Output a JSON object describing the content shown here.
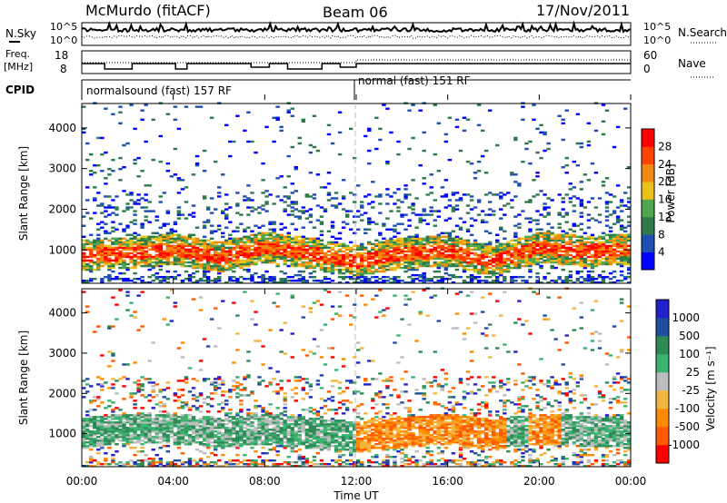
{
  "header": {
    "station": "McMurdo (fitACF)",
    "beam": "Beam 06",
    "date": "17/Nov/2011"
  },
  "top_panels": {
    "nsky_label": "N.Sky",
    "nsearch_label": "N.Search",
    "nsky_ticks": [
      "10^5",
      "10^0"
    ],
    "nsearch_ticks": [
      "10^5",
      "10^0"
    ],
    "freq_label_1": "Freq.",
    "freq_label_2": "[MHz]",
    "freq_ticks": [
      "18",
      "8"
    ],
    "nave_label": "Nave",
    "nave_ticks": [
      "60",
      "0"
    ],
    "cpid_label": "CPID",
    "cpid_segments": [
      "normalsound (fast) 157 RF",
      "normal (fast) 151 RF"
    ]
  },
  "x_axis": {
    "label": "Time UT",
    "ticks": [
      "00:00",
      "04:00",
      "08:00",
      "12:00",
      "16:00",
      "20:00",
      "00:00"
    ]
  },
  "colors": {
    "power": [
      "#0000ff",
      "#1f4fb0",
      "#2f7a4a",
      "#4fa64f",
      "#e8c21a",
      "#f08a10",
      "#ff4500",
      "#ff0000"
    ],
    "velocity": [
      "#ff0000",
      "#ff5a00",
      "#ff8c00",
      "#f2b640",
      "#bdbdbd",
      "#3cb371",
      "#2e8b57",
      "#1e4fa0",
      "#2222cc"
    ]
  },
  "chart_data": [
    {
      "type": "heatmap",
      "title": "",
      "xlabel": "Time UT",
      "ylabel": "Slant Range [km]",
      "xlim": [
        "00:00",
        "24:00"
      ],
      "ylim": [
        180,
        4600
      ],
      "yticks": [
        1000,
        2000,
        3000,
        4000
      ],
      "colorbar": {
        "label": "Power [dB]",
        "ticks": [
          4,
          8,
          12,
          16,
          20,
          24,
          28
        ],
        "range": [
          0,
          30
        ]
      },
      "band_profile": [
        {
          "x": "00:00",
          "y": 850
        },
        {
          "x": "02:00",
          "y": 900
        },
        {
          "x": "04:00",
          "y": 1000
        },
        {
          "x": "06:00",
          "y": 800
        },
        {
          "x": "08:00",
          "y": 1050
        },
        {
          "x": "10:00",
          "y": 900
        },
        {
          "x": "12:00",
          "y": 700
        },
        {
          "x": "14:00",
          "y": 900
        },
        {
          "x": "16:00",
          "y": 950
        },
        {
          "x": "18:00",
          "y": 700
        },
        {
          "x": "20:00",
          "y": 1050
        },
        {
          "x": "22:00",
          "y": 950
        },
        {
          "x": "24:00",
          "y": 1000
        }
      ]
    },
    {
      "type": "heatmap",
      "title": "",
      "xlabel": "Time UT",
      "ylabel": "Slant Range [km]",
      "xlim": [
        "00:00",
        "24:00"
      ],
      "ylim": [
        180,
        4600
      ],
      "yticks": [
        1000,
        2000,
        3000,
        4000
      ],
      "colorbar": {
        "label": "Velocity [m s⁻¹]",
        "ticks": [
          1000,
          500,
          100,
          25,
          -25,
          -100,
          -500,
          -1000
        ]
      },
      "band_profile": [
        {
          "x": "00:00",
          "y": 1000
        },
        {
          "x": "02:00",
          "y": 1100
        },
        {
          "x": "04:00",
          "y": 1100
        },
        {
          "x": "06:00",
          "y": 1000
        },
        {
          "x": "08:00",
          "y": 1100
        },
        {
          "x": "10:00",
          "y": 1000
        },
        {
          "x": "12:00",
          "y": 900
        },
        {
          "x": "14:00",
          "y": 1000
        },
        {
          "x": "16:00",
          "y": 1100
        },
        {
          "x": "18:00",
          "y": 950
        },
        {
          "x": "20:00",
          "y": 1100
        },
        {
          "x": "22:00",
          "y": 1050
        },
        {
          "x": "24:00",
          "y": 1000
        }
      ]
    }
  ]
}
